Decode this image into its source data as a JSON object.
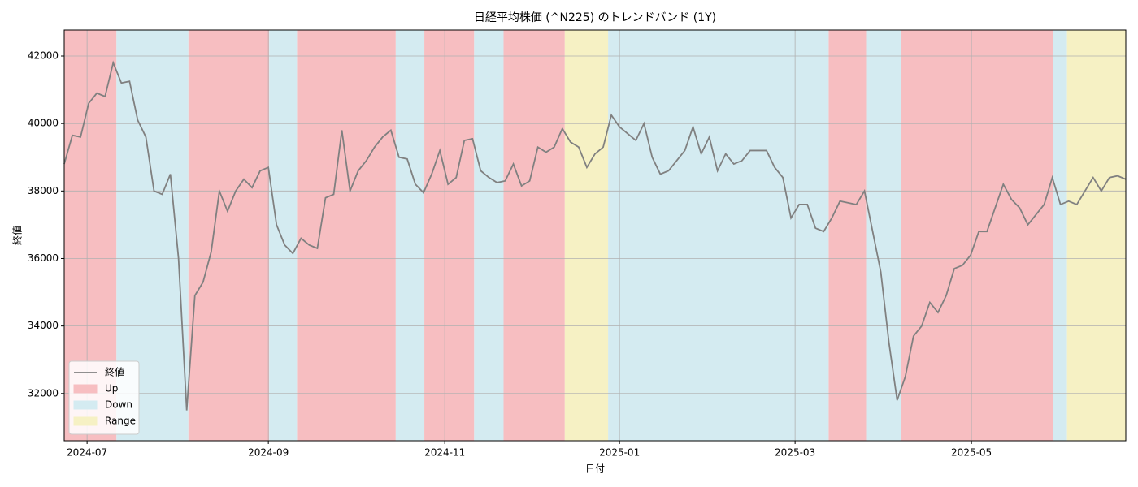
{
  "chart_data": {
    "type": "line",
    "title": "日経平均株価 (^N225) のトレンドバンド (1Y)",
    "xlabel": "日付",
    "ylabel": "終値",
    "xlim": [
      0,
      130
    ],
    "ylim": [
      30600,
      42770
    ],
    "xticks": [
      {
        "value": 2.8,
        "label": "2024-07"
      },
      {
        "value": 25,
        "label": "2024-09"
      },
      {
        "value": 46.6,
        "label": "2024-11"
      },
      {
        "value": 68,
        "label": "2025-01"
      },
      {
        "value": 89.5,
        "label": "2025-03"
      },
      {
        "value": 111.1,
        "label": "2025-05"
      }
    ],
    "yticks": [
      32000,
      34000,
      36000,
      38000,
      40000,
      42000
    ],
    "grid": true,
    "legend": "lower left",
    "series": [
      {
        "name": "終値",
        "color": "#808080",
        "values": [
          38800,
          39650,
          39600,
          40600,
          40900,
          40800,
          41800,
          41200,
          41250,
          40100,
          39600,
          38000,
          37900,
          38500,
          36000,
          31500,
          34900,
          35300,
          36200,
          38000,
          37400,
          38000,
          38350,
          38100,
          38600,
          38700,
          37000,
          36400,
          36150,
          36600,
          36400,
          36300,
          37800,
          37900,
          39800,
          38000,
          38600,
          38900,
          39300,
          39600,
          39800,
          39000,
          38950,
          38200,
          37950,
          38500,
          39200,
          38200,
          38400,
          39500,
          39550,
          38600,
          38400,
          38250,
          38300,
          38800,
          38150,
          38300,
          39300,
          39150,
          39300,
          39850,
          39450,
          39300,
          38700,
          39100,
          39300,
          40250,
          39900,
          39700,
          39500,
          40000,
          39000,
          38500,
          38600,
          38900,
          39200,
          39900,
          39100,
          39600,
          38600,
          39100,
          38800,
          38900,
          39200,
          39200,
          39200,
          38700,
          38400,
          37200,
          37600,
          37600,
          36900,
          36800,
          37200,
          37700,
          37650,
          37600,
          38000,
          36800,
          35600,
          33500,
          31800,
          32500,
          33700,
          34000,
          34700,
          34400,
          34900,
          35700,
          35800,
          36100,
          36800,
          36800,
          37500,
          38200,
          37750,
          37500,
          37000,
          37300,
          37600,
          38400,
          37600,
          37700,
          37600,
          38000,
          38400,
          38000,
          38400,
          38450,
          38350
        ]
      }
    ],
    "bands": [
      {
        "name": "Up",
        "color": "#f7bec1",
        "spans": [
          [
            0,
            6.4
          ],
          [
            15.2,
            25.1
          ],
          [
            28.5,
            40.6
          ],
          [
            44.1,
            50.2
          ],
          [
            53.8,
            61.3
          ],
          [
            93.6,
            98.2
          ],
          [
            102.5,
            121.1
          ]
        ]
      },
      {
        "name": "Down",
        "color": "#d4ebf1",
        "spans": [
          [
            6.4,
            15.2
          ],
          [
            25.1,
            28.5
          ],
          [
            40.6,
            44.1
          ],
          [
            50.2,
            53.8
          ],
          [
            66.6,
            93.6
          ],
          [
            98.2,
            102.5
          ],
          [
            121.1,
            122.8
          ]
        ]
      },
      {
        "name": "Range",
        "color": "#f6f1c4",
        "spans": [
          [
            61.3,
            66.6
          ],
          [
            122.8,
            130
          ]
        ]
      }
    ]
  }
}
